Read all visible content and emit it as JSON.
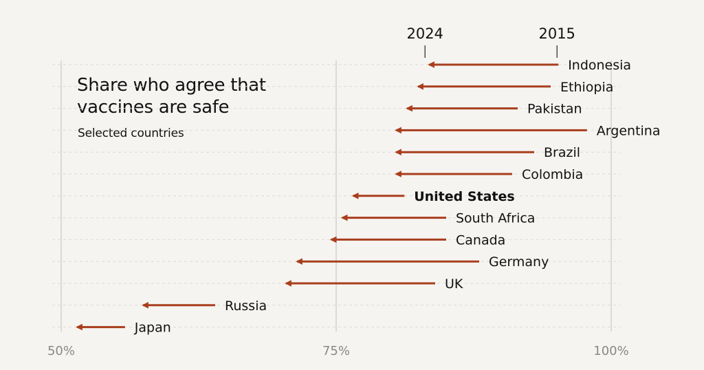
{
  "chart_data": {
    "type": "arrow",
    "title": "Share who agree that vaccines are safe",
    "subtitle": "Selected countries",
    "series": [
      {
        "name": "2015"
      },
      {
        "name": "2024"
      }
    ],
    "x_range": [
      50,
      100
    ],
    "x_ticks": [
      {
        "value": 50,
        "label": "50%"
      },
      {
        "value": 75,
        "label": "75%"
      },
      {
        "value": 100,
        "label": "100%"
      }
    ],
    "countries": [
      {
        "name": "Indonesia",
        "v2015": 95.2,
        "v2024": 83.2,
        "highlight": false
      },
      {
        "name": "Ethiopia",
        "v2015": 94.5,
        "v2024": 82.2,
        "highlight": false
      },
      {
        "name": "Pakistan",
        "v2015": 91.5,
        "v2024": 81.2,
        "highlight": false
      },
      {
        "name": "Argentina",
        "v2015": 97.8,
        "v2024": 80.2,
        "highlight": false
      },
      {
        "name": "Brazil",
        "v2015": 93.0,
        "v2024": 80.2,
        "highlight": false
      },
      {
        "name": "Colombia",
        "v2015": 91.0,
        "v2024": 80.2,
        "highlight": false
      },
      {
        "name": "United States",
        "v2015": 81.2,
        "v2024": 76.3,
        "highlight": true
      },
      {
        "name": "South Africa",
        "v2015": 85.0,
        "v2024": 75.3,
        "highlight": false
      },
      {
        "name": "Canada",
        "v2015": 85.0,
        "v2024": 74.3,
        "highlight": false
      },
      {
        "name": "Germany",
        "v2015": 88.0,
        "v2024": 71.2,
        "highlight": false
      },
      {
        "name": "UK",
        "v2015": 84.0,
        "v2024": 70.2,
        "highlight": false
      },
      {
        "name": "Russia",
        "v2015": 64.0,
        "v2024": 57.2,
        "highlight": false
      },
      {
        "name": "Japan",
        "v2015": 55.8,
        "v2024": 51.2,
        "highlight": false
      }
    ],
    "colors": {
      "arrow": "#a83e1c",
      "text": "#111111",
      "grid": "#d4d2cf",
      "axis_label": "#888888",
      "background": "#f6f4f1"
    },
    "grid": true
  }
}
